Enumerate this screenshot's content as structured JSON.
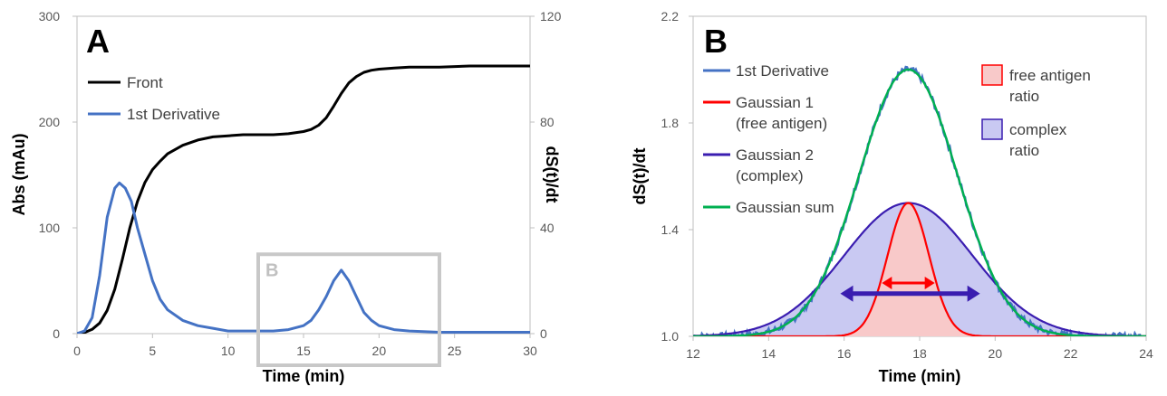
{
  "chart_data": [
    {
      "type": "line",
      "panel_label": "A",
      "xlabel": "Time (min)",
      "ylabel": "Abs (mAu)",
      "y2label": "dS(t)/dt",
      "xlim": [
        0,
        30
      ],
      "ylim": [
        0,
        300
      ],
      "y2lim": [
        0,
        120
      ],
      "xticks": [
        "0",
        "5",
        "10",
        "15",
        "20",
        "25",
        "30"
      ],
      "yticks": [
        "0",
        "100",
        "200",
        "300"
      ],
      "y2ticks": [
        "0",
        "40",
        "80",
        "120"
      ],
      "legend_position": "upper-left",
      "series": [
        {
          "name": "Front",
          "axis": "left",
          "color": "#000000",
          "x": [
            0,
            0.5,
            1,
            1.5,
            2,
            2.5,
            3,
            3.5,
            4,
            4.5,
            5,
            5.5,
            6,
            7,
            8,
            9,
            10,
            11,
            12,
            13,
            14,
            15,
            15.5,
            16,
            16.5,
            17,
            17.5,
            18,
            18.5,
            19,
            19.5,
            20,
            21,
            22,
            24,
            26,
            28,
            30
          ],
          "y": [
            0,
            1,
            4,
            10,
            22,
            42,
            70,
            100,
            125,
            143,
            155,
            163,
            170,
            178,
            183,
            186,
            187,
            188,
            188,
            188,
            189,
            191,
            193,
            197,
            204,
            215,
            227,
            237,
            243,
            247,
            249,
            250,
            251,
            252,
            252,
            253,
            253,
            253
          ]
        },
        {
          "name": "1st Derivative",
          "axis": "right",
          "color": "#4472C4",
          "x": [
            0,
            0.5,
            1,
            1.5,
            2,
            2.5,
            2.8,
            3.2,
            3.6,
            4,
            4.5,
            5,
            5.5,
            6,
            7,
            8,
            9,
            10,
            11,
            12,
            13,
            14,
            15,
            15.5,
            16,
            16.5,
            17,
            17.5,
            18,
            18.5,
            19,
            19.5,
            20,
            21,
            22,
            24,
            26,
            28,
            30
          ],
          "y": [
            0,
            1,
            6,
            22,
            44,
            55,
            57,
            55,
            50,
            40,
            30,
            20,
            13,
            9,
            5,
            3,
            2,
            1,
            1,
            1,
            1,
            1.5,
            3,
            5,
            9,
            14,
            20,
            24,
            20,
            14,
            8,
            5,
            3,
            1.5,
            1,
            0.5,
            0.5,
            0.5,
            0.5
          ]
        }
      ],
      "annotations": [
        {
          "text": "B",
          "type": "zoom-box",
          "x_range": [
            12,
            24
          ],
          "y_range": [
            0,
            30
          ]
        }
      ]
    },
    {
      "type": "area",
      "panel_label": "B",
      "xlabel": "Time (min)",
      "ylabel": "dS(t)/dt",
      "xlim": [
        12,
        24
      ],
      "ylim": [
        1.0,
        2.2
      ],
      "xticks": [
        "12",
        "14",
        "16",
        "18",
        "20",
        "22",
        "24"
      ],
      "yticks": [
        "1.0",
        "1.4",
        "1.8",
        "2.2"
      ],
      "peak_center": 17.7,
      "legend_position": "left-and-upper-right",
      "series": [
        {
          "name": "1st Derivative",
          "color": "#4472C4",
          "amplitude": 1.0,
          "sigma": 1.3,
          "noise": 0.012
        },
        {
          "name": "Gaussian 1 (free antigen)",
          "legend_lines": [
            "Gaussian 1",
            "(free antigen)"
          ],
          "color": "#FF0000",
          "amplitude": 0.5,
          "sigma": 0.55,
          "fill": "#F8C9C9"
        },
        {
          "name": "Gaussian 2 (complex)",
          "legend_lines": [
            "Gaussian 2",
            "(complex)"
          ],
          "color": "#3A1DB0",
          "amplitude": 0.5,
          "sigma": 1.7,
          "fill": "#C9C9F2"
        },
        {
          "name": "Gaussian sum",
          "color": "#00B050",
          "amplitude": 1.0,
          "sigma": 1.3
        }
      ],
      "ratio_legend": [
        {
          "lines": [
            "free antigen",
            "ratio"
          ],
          "fill": "#F8C9C9",
          "stroke": "#FF0000"
        },
        {
          "lines": [
            "complex",
            "ratio"
          ],
          "fill": "#C9C9F2",
          "stroke": "#3A1DB0"
        }
      ],
      "annotations": [
        {
          "type": "double-arrow",
          "color": "#FF0000",
          "x_range": [
            17.0,
            18.4
          ],
          "y": 1.2
        },
        {
          "type": "double-arrow",
          "color": "#3A1DB0",
          "x_range": [
            15.9,
            19.6
          ],
          "y": 1.16
        }
      ]
    }
  ]
}
